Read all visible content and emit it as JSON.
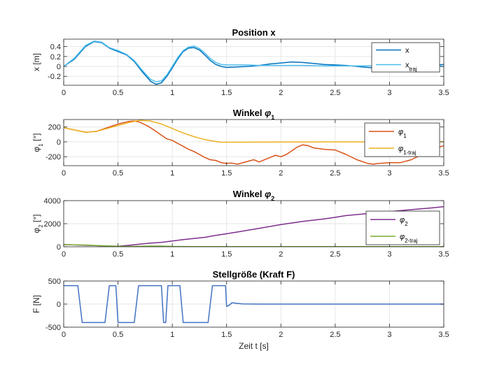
{
  "chart_data": [
    {
      "type": "line",
      "title_text": "Position x",
      "ylabel": "x [m]",
      "xlabel": "",
      "xlim": [
        0,
        3.5
      ],
      "ylim": [
        -0.38,
        0.55
      ],
      "xticks": [
        0,
        0.5,
        1,
        1.5,
        2,
        2.5,
        3,
        3.5
      ],
      "xtick_labels": [
        "0",
        "0.5",
        "1",
        "1.5",
        "2",
        "2.5",
        "3",
        "3.5"
      ],
      "yticks": [
        -0.2,
        0,
        0.2,
        0.4
      ],
      "ytick_labels": [
        "-0.2",
        "0",
        "0.2",
        "0.4"
      ],
      "grid": true,
      "legend_position": "top-right",
      "series": [
        {
          "name": "x",
          "name_sub": "",
          "color": "#0072BD",
          "x": [
            0,
            0.1,
            0.2,
            0.28,
            0.35,
            0.42,
            0.5,
            0.58,
            0.65,
            0.72,
            0.8,
            0.85,
            0.9,
            0.95,
            1.0,
            1.05,
            1.1,
            1.15,
            1.2,
            1.25,
            1.3,
            1.35,
            1.4,
            1.45,
            1.5,
            1.6,
            1.7,
            1.8,
            1.9,
            2.0,
            2.1,
            2.2,
            2.3,
            2.4,
            2.5,
            2.6,
            2.7,
            2.8,
            2.9,
            3.0,
            3.1,
            3.2,
            3.3,
            3.4,
            3.5
          ],
          "y": [
            0.0,
            0.15,
            0.4,
            0.5,
            0.48,
            0.37,
            0.3,
            0.23,
            0.1,
            -0.1,
            -0.3,
            -0.36,
            -0.33,
            -0.2,
            -0.03,
            0.15,
            0.3,
            0.37,
            0.38,
            0.33,
            0.23,
            0.12,
            0.04,
            0.0,
            -0.02,
            -0.01,
            0.0,
            0.02,
            0.05,
            0.07,
            0.09,
            0.08,
            0.06,
            0.04,
            0.03,
            0.02,
            0.0,
            -0.02,
            -0.03,
            -0.03,
            -0.03,
            -0.02,
            0.0,
            0.02,
            0.04
          ]
        },
        {
          "name": "x",
          "name_sub": "traj",
          "color": "#4DBEEE",
          "x": [
            0,
            0.1,
            0.2,
            0.28,
            0.35,
            0.42,
            0.5,
            0.58,
            0.65,
            0.72,
            0.8,
            0.85,
            0.9,
            0.95,
            1.0,
            1.05,
            1.1,
            1.15,
            1.2,
            1.25,
            1.3,
            1.35,
            1.4,
            1.45,
            1.5,
            1.6,
            1.7,
            1.8,
            2.0,
            2.2,
            2.4,
            2.6,
            2.8,
            3.0,
            3.2,
            3.5
          ],
          "y": [
            0.0,
            0.17,
            0.42,
            0.51,
            0.49,
            0.38,
            0.32,
            0.24,
            0.12,
            -0.07,
            -0.26,
            -0.31,
            -0.29,
            -0.17,
            0.0,
            0.18,
            0.32,
            0.39,
            0.41,
            0.36,
            0.27,
            0.16,
            0.08,
            0.04,
            0.03,
            0.03,
            0.03,
            0.02,
            0.02,
            0.02,
            0.01,
            0.01,
            0.01,
            0.01,
            0.0,
            0.0
          ]
        }
      ]
    },
    {
      "type": "line",
      "title_text": "Winkel ",
      "title_sym": "φ",
      "title_sub": "1",
      "ylabel": "φ",
      "ylabel_sub": "1",
      "ylabel_unit": " [°]",
      "xlabel": "",
      "xlim": [
        0,
        3.5
      ],
      "ylim": [
        -320,
        300
      ],
      "xticks": [
        0,
        0.5,
        1,
        1.5,
        2,
        2.5,
        3,
        3.5
      ],
      "xtick_labels": [
        "0",
        "0.5",
        "1",
        "1.5",
        "2",
        "2.5",
        "3",
        "3.5"
      ],
      "yticks": [
        -200,
        0,
        200
      ],
      "ytick_labels": [
        "-200",
        "0",
        "200"
      ],
      "grid": true,
      "legend_position": "top-right",
      "series": [
        {
          "name": "φ",
          "name_sub": "1",
          "color": "#D95319",
          "x": [
            0,
            0.1,
            0.2,
            0.3,
            0.4,
            0.5,
            0.6,
            0.65,
            0.7,
            0.75,
            0.8,
            0.85,
            0.9,
            0.95,
            1.0,
            1.05,
            1.1,
            1.15,
            1.2,
            1.25,
            1.3,
            1.35,
            1.4,
            1.45,
            1.5,
            1.55,
            1.6,
            1.7,
            1.75,
            1.8,
            1.9,
            1.95,
            2.0,
            2.05,
            2.1,
            2.15,
            2.2,
            2.25,
            2.3,
            2.4,
            2.5,
            2.6,
            2.7,
            2.8,
            2.85,
            2.9,
            3.0,
            3.1,
            3.2,
            3.3,
            3.4,
            3.5
          ],
          "y": [
            190,
            160,
            130,
            140,
            190,
            240,
            275,
            280,
            265,
            230,
            190,
            140,
            90,
            40,
            20,
            -20,
            -60,
            -100,
            -130,
            -170,
            -210,
            -240,
            -250,
            -280,
            -290,
            -285,
            -300,
            -260,
            -240,
            -270,
            -210,
            -180,
            -200,
            -170,
            -120,
            -70,
            -40,
            -50,
            -80,
            -100,
            -110,
            -170,
            -240,
            -290,
            -300,
            -290,
            -280,
            -280,
            -240,
            -170,
            -100,
            -50
          ]
        },
        {
          "name": "φ",
          "name_sub": "1-traj",
          "color": "#EDB120",
          "x": [
            0,
            0.1,
            0.2,
            0.3,
            0.4,
            0.5,
            0.6,
            0.7,
            0.8,
            0.9,
            1.0,
            1.1,
            1.2,
            1.3,
            1.4,
            1.45,
            1.5,
            1.6,
            1.8,
            2.0,
            2.5,
            3.0,
            3.5
          ],
          "y": [
            190,
            160,
            130,
            140,
            180,
            220,
            260,
            290,
            280,
            240,
            180,
            120,
            70,
            30,
            5,
            -5,
            -5,
            -5,
            -3,
            -2,
            -1,
            0,
            0
          ]
        }
      ]
    },
    {
      "type": "line",
      "title_text": "Winkel ",
      "title_sym": "φ",
      "title_sub": "2",
      "ylabel": "φ",
      "ylabel_sub": "2",
      "ylabel_unit": " [°]",
      "xlabel": "",
      "xlim": [
        0,
        3.5
      ],
      "ylim": [
        0,
        4000
      ],
      "xticks": [
        0,
        0.5,
        1,
        1.5,
        2,
        2.5,
        3,
        3.5
      ],
      "xtick_labels": [
        "0",
        "0.5",
        "1",
        "1.5",
        "2",
        "2.5",
        "3",
        "3.5"
      ],
      "yticks": [
        0,
        2000,
        4000
      ],
      "ytick_labels": [
        "0",
        "2000",
        "4000"
      ],
      "grid": true,
      "legend_position": "bottom-right",
      "series": [
        {
          "name": "φ",
          "name_sub": "2",
          "color": "#7E2F8E",
          "x": [
            0,
            0.1,
            0.2,
            0.3,
            0.4,
            0.5,
            0.6,
            0.7,
            0.8,
            0.9,
            1.0,
            1.1,
            1.2,
            1.3,
            1.4,
            1.5,
            1.6,
            1.8,
            2.0,
            2.2,
            2.4,
            2.5,
            2.6,
            2.8,
            3.0,
            3.2,
            3.4,
            3.5
          ],
          "y": [
            190,
            160,
            130,
            100,
            60,
            40,
            130,
            230,
            320,
            380,
            500,
            620,
            720,
            820,
            980,
            1130,
            1280,
            1600,
            1920,
            2200,
            2420,
            2550,
            2700,
            2880,
            3050,
            3220,
            3380,
            3480
          ]
        },
        {
          "name": "φ",
          "name_sub": "2-traj",
          "color": "#77AC30",
          "x": [
            0,
            0.1,
            0.2,
            0.3,
            0.4,
            0.5,
            0.6,
            0.7,
            0.8,
            0.9,
            1.0,
            1.2,
            1.5,
            2.0,
            2.5,
            3.0,
            3.5
          ],
          "y": [
            190,
            170,
            150,
            110,
            70,
            40,
            30,
            40,
            60,
            60,
            30,
            10,
            10,
            10,
            10,
            10,
            10
          ]
        }
      ]
    },
    {
      "type": "line",
      "title_text": "Stellgröße (Kraft F)",
      "ylabel": "F [N]",
      "xlabel": "Zeit t [s]",
      "xlim": [
        0,
        3.5
      ],
      "ylim": [
        -500,
        500
      ],
      "xticks": [
        0,
        0.5,
        1,
        1.5,
        2,
        2.5,
        3,
        3.5
      ],
      "xtick_labels": [
        "0",
        "0.5",
        "1",
        "1.5",
        "2",
        "2.5",
        "3",
        "3.5"
      ],
      "yticks": [
        -500,
        0,
        500
      ],
      "ytick_labels": [
        "-500",
        "0",
        "500"
      ],
      "grid": true,
      "legend_position": "none",
      "series": [
        {
          "name": "",
          "name_sub": "",
          "color": "#4472C4",
          "x": [
            0,
            0.13,
            0.17,
            0.38,
            0.42,
            0.46,
            0.48,
            0.5,
            0.55,
            0.65,
            0.69,
            0.9,
            0.92,
            0.94,
            0.96,
            1.0,
            1.07,
            1.1,
            1.33,
            1.37,
            1.43,
            1.45,
            1.47,
            1.49,
            1.5,
            1.52,
            1.55,
            1.58,
            1.65,
            1.8,
            2.0,
            2.5,
            3.0,
            3.5
          ],
          "y": [
            400,
            400,
            -400,
            -400,
            400,
            400,
            400,
            -400,
            -400,
            -400,
            400,
            400,
            -400,
            -400,
            400,
            400,
            400,
            -400,
            -400,
            400,
            400,
            400,
            400,
            400,
            -50,
            -30,
            30,
            20,
            5,
            0,
            0,
            0,
            0,
            0
          ]
        }
      ]
    }
  ]
}
